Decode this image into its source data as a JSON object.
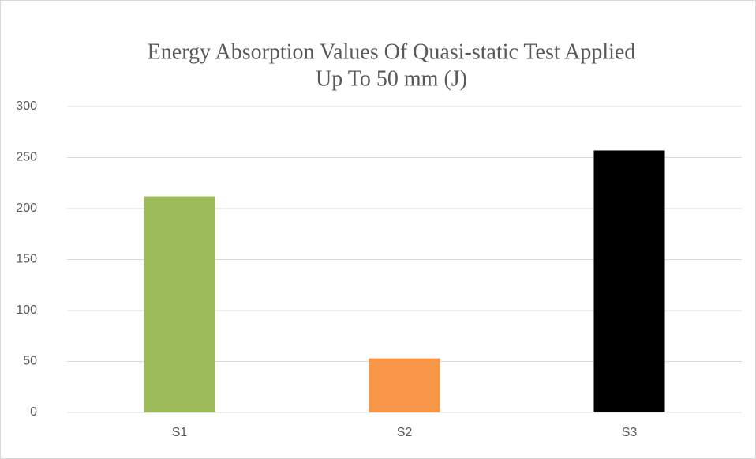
{
  "chart_data": {
    "type": "bar",
    "title": [
      "Energy Absorption Values Of Quasi-static Test Applied",
      "Up To 50 mm (J)"
    ],
    "categories": [
      "S1",
      "S2",
      "S3"
    ],
    "values": [
      212,
      53,
      257
    ],
    "colors": [
      "#9bbb59",
      "#f79646",
      "#000000"
    ],
    "ylim": [
      0,
      300
    ],
    "yticks": [
      0,
      50,
      100,
      150,
      200,
      250,
      300
    ],
    "grid": true
  }
}
